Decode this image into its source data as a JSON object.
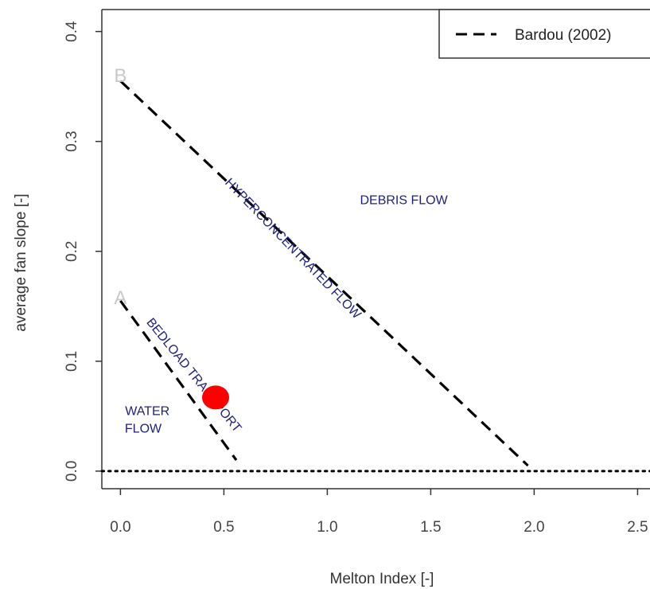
{
  "chart_data": {
    "type": "line",
    "xlabel": "Melton Index [-]",
    "ylabel": "average fan slope [-]",
    "xlim": [
      -0.09,
      2.56
    ],
    "ylim": [
      -0.016,
      0.42
    ],
    "x_ticks": [
      "0.0",
      "0.5",
      "1.0",
      "1.5",
      "2.0",
      "2.5"
    ],
    "y_ticks": [
      "0.0",
      "0.1",
      "0.2",
      "0.3",
      "0.4"
    ],
    "x_tick_values": [
      0,
      0.5,
      1.0,
      1.5,
      2.0,
      2.5
    ],
    "y_tick_values": [
      0,
      0.1,
      0.2,
      0.3,
      0.4
    ],
    "series": [
      {
        "name": "Bardou (2002)",
        "style": "dashed",
        "color": "#000000",
        "x": [
          0.0,
          0.56
        ],
        "y": [
          0.155,
          0.01
        ]
      },
      {
        "name": "Bardou (2002)",
        "style": "dashed",
        "color": "#000000",
        "x": [
          0.0,
          1.97
        ],
        "y": [
          0.355,
          0.005
        ]
      }
    ],
    "reference_lines": [
      {
        "style": "dotted",
        "y": 0.0
      }
    ],
    "highlight_points": [
      {
        "x": 0.46,
        "y": 0.067,
        "color": "#ff0000"
      }
    ],
    "point_labels": [
      {
        "text": "A",
        "x": 0.0,
        "y": 0.158
      },
      {
        "text": "B",
        "x": 0.0,
        "y": 0.36
      }
    ],
    "annotations": [
      {
        "text": "DEBRIS FLOW",
        "x": 1.37,
        "y": 0.243,
        "rotation": 0
      },
      {
        "text": "HYPERCONCENTRATED FLOW",
        "x": 0.82,
        "y": 0.2,
        "rotation": 46
      },
      {
        "text": "BEDLOAD TRANSPORT",
        "x": 0.34,
        "y": 0.085,
        "rotation": 51
      },
      {
        "text": "WATER",
        "x": 0.13,
        "y": 0.051,
        "rotation": 0
      },
      {
        "text": "FLOW",
        "x": 0.11,
        "y": 0.035,
        "rotation": 0
      }
    ],
    "legend": {
      "position": "top-right",
      "label": "Bardou (2002)"
    },
    "grid": false
  }
}
